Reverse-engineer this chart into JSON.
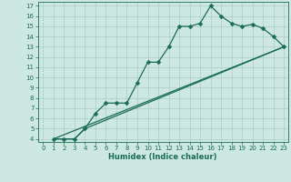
{
  "xlabel": "Humidex (Indice chaleur)",
  "bg_color": "#cce8e0",
  "grid_color": "#aaccc4",
  "line_color": "#1a6b5a",
  "xlim": [
    -0.5,
    23.4
  ],
  "ylim": [
    3.7,
    17.4
  ],
  "xticks": [
    0,
    1,
    2,
    3,
    4,
    5,
    6,
    7,
    8,
    9,
    10,
    11,
    12,
    13,
    14,
    15,
    16,
    17,
    18,
    19,
    20,
    21,
    22,
    23
  ],
  "yticks": [
    4,
    5,
    6,
    7,
    8,
    9,
    10,
    11,
    12,
    13,
    14,
    15,
    16,
    17
  ],
  "line1_x": [
    1,
    2,
    3,
    4,
    5,
    6,
    7,
    8,
    9,
    10,
    11,
    12,
    13,
    14,
    15,
    16,
    17,
    18,
    19,
    20,
    21,
    22,
    23
  ],
  "line1_y": [
    4,
    4,
    4,
    5,
    6.5,
    7.5,
    7.5,
    7.5,
    9.5,
    11.5,
    11.5,
    13,
    15,
    15,
    15.3,
    17,
    16,
    15.3,
    15,
    15.2,
    14.8,
    14,
    13
  ],
  "line2_x": [
    1,
    23
  ],
  "line2_y": [
    4,
    13
  ],
  "line3_x": [
    1,
    3,
    4,
    23
  ],
  "line3_y": [
    4,
    4,
    5,
    13
  ],
  "markersize": 2.5,
  "linewidth": 0.9,
  "tick_labelsize": 5.0,
  "xlabel_fontsize": 6.0
}
